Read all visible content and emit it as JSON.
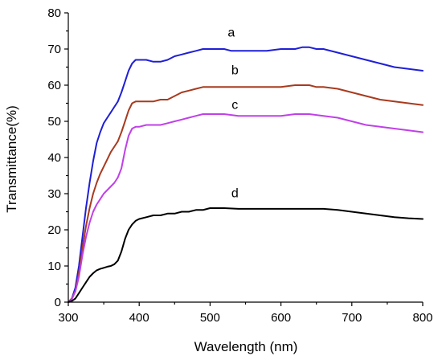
{
  "chart_data": {
    "type": "line",
    "title": "",
    "xlabel": "Wavelength (nm)",
    "ylabel": "Transmittance(%)",
    "xlim": [
      300,
      800
    ],
    "ylim": [
      0,
      80
    ],
    "xticks": [
      300,
      400,
      500,
      600,
      700,
      800
    ],
    "yticks": [
      0,
      10,
      20,
      30,
      40,
      50,
      60,
      70,
      80
    ],
    "grid": false,
    "legend": "none",
    "series": [
      {
        "name": "a",
        "color": "#1f1fd6",
        "label_at": [
          530,
          73.5
        ],
        "x": [
          300,
          305,
          310,
          315,
          320,
          325,
          330,
          335,
          340,
          345,
          350,
          355,
          360,
          365,
          370,
          375,
          380,
          385,
          390,
          395,
          400,
          410,
          420,
          430,
          440,
          450,
          460,
          470,
          480,
          490,
          500,
          510,
          520,
          530,
          540,
          550,
          560,
          580,
          600,
          620,
          630,
          640,
          650,
          660,
          680,
          700,
          720,
          740,
          760,
          780,
          800
        ],
        "y": [
          0,
          1,
          4,
          10,
          18,
          26,
          33,
          39,
          44,
          47,
          49.5,
          51,
          52.5,
          54,
          55.5,
          58,
          61,
          64,
          66,
          67,
          67,
          67,
          66.5,
          66.5,
          67,
          68,
          68.5,
          69,
          69.5,
          70,
          70,
          70,
          70,
          69.5,
          69.5,
          69.5,
          69.5,
          69.5,
          70,
          70,
          70.5,
          70.5,
          70,
          70,
          69,
          68,
          67,
          66,
          65,
          64.5,
          64
        ]
      },
      {
        "name": "b",
        "color": "#a83a1e",
        "label_at": [
          535,
          63
        ],
        "x": [
          300,
          305,
          310,
          315,
          320,
          325,
          330,
          335,
          340,
          345,
          350,
          355,
          360,
          365,
          370,
          375,
          380,
          385,
          390,
          395,
          400,
          410,
          420,
          430,
          440,
          450,
          460,
          470,
          480,
          490,
          500,
          520,
          540,
          560,
          580,
          600,
          620,
          630,
          640,
          650,
          660,
          680,
          700,
          720,
          740,
          760,
          780,
          800
        ],
        "y": [
          0,
          1,
          3,
          8,
          15,
          21,
          26,
          30,
          33,
          35.5,
          37.5,
          39.5,
          41.5,
          43,
          44.5,
          47,
          50,
          53,
          55,
          55.5,
          55.5,
          55.5,
          55.5,
          56,
          56,
          57,
          58,
          58.5,
          59,
          59.5,
          59.5,
          59.5,
          59.5,
          59.5,
          59.5,
          59.5,
          60,
          60,
          60,
          59.5,
          59.5,
          59,
          58,
          57,
          56,
          55.5,
          55,
          54.5
        ]
      },
      {
        "name": "c",
        "color": "#c040e8",
        "label_at": [
          535,
          53.5
        ],
        "x": [
          300,
          305,
          310,
          315,
          320,
          325,
          330,
          335,
          340,
          345,
          350,
          355,
          360,
          365,
          370,
          375,
          380,
          385,
          390,
          395,
          400,
          410,
          420,
          430,
          440,
          450,
          460,
          470,
          480,
          490,
          500,
          520,
          540,
          560,
          580,
          600,
          620,
          640,
          660,
          680,
          700,
          720,
          740,
          760,
          780,
          800
        ],
        "y": [
          0,
          0.8,
          3,
          7,
          13,
          18,
          22,
          25,
          27,
          28.5,
          30,
          31,
          32,
          33,
          34.5,
          37,
          42,
          46,
          48,
          48.5,
          48.5,
          49,
          49,
          49,
          49.5,
          50,
          50.5,
          51,
          51.5,
          52,
          52,
          52,
          51.5,
          51.5,
          51.5,
          51.5,
          52,
          52,
          51.5,
          51,
          50,
          49,
          48.5,
          48,
          47.5,
          47
        ]
      },
      {
        "name": "d",
        "color": "#000000",
        "label_at": [
          535,
          29
        ],
        "x": [
          300,
          305,
          310,
          315,
          320,
          325,
          330,
          335,
          340,
          345,
          350,
          355,
          360,
          365,
          370,
          375,
          380,
          385,
          390,
          395,
          400,
          410,
          420,
          430,
          440,
          450,
          460,
          470,
          480,
          490,
          500,
          520,
          540,
          560,
          580,
          600,
          620,
          640,
          660,
          680,
          700,
          720,
          740,
          760,
          780,
          800
        ],
        "y": [
          0,
          0.3,
          1,
          2.5,
          4,
          5.5,
          7,
          8,
          8.8,
          9.2,
          9.5,
          9.8,
          10,
          10.5,
          11.5,
          14,
          17.5,
          20,
          21.5,
          22.5,
          23,
          23.5,
          24,
          24,
          24.5,
          24.5,
          25,
          25,
          25.5,
          25.5,
          26,
          26,
          25.8,
          25.8,
          25.8,
          25.8,
          25.8,
          25.8,
          25.8,
          25.5,
          25,
          24.5,
          24,
          23.5,
          23.2,
          23
        ]
      }
    ]
  }
}
